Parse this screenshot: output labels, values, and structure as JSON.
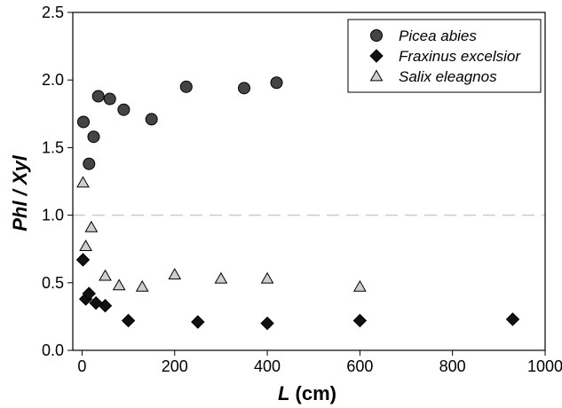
{
  "chart_data": {
    "type": "scatter",
    "xlabel_var": "L",
    "xlabel_unit": " (cm)",
    "ylabel": "Phl / Xyl",
    "xlim": [
      -20,
      1000
    ],
    "ylim": [
      0,
      2.5
    ],
    "x_ticks": [
      "0",
      "200",
      "400",
      "600",
      "800",
      "1000"
    ],
    "y_ticks": [
      "0.0",
      "0.5",
      "1.0",
      "1.5",
      "2.0",
      "2.5"
    ],
    "reference_line": {
      "y": 1.0,
      "style": "dashed",
      "color": "#cccccc"
    },
    "legend_position": "top-right",
    "series": [
      {
        "name": "Picea abies",
        "marker": "circle",
        "color": "#444444",
        "points": [
          [
            3,
            1.69
          ],
          [
            15,
            1.38
          ],
          [
            25,
            1.58
          ],
          [
            35,
            1.88
          ],
          [
            60,
            1.86
          ],
          [
            90,
            1.78
          ],
          [
            150,
            1.71
          ],
          [
            225,
            1.95
          ],
          [
            350,
            1.94
          ],
          [
            420,
            1.98
          ]
        ]
      },
      {
        "name": "Fraxinus excelsior",
        "marker": "diamond",
        "color": "#111111",
        "points": [
          [
            2,
            0.67
          ],
          [
            8,
            0.38
          ],
          [
            15,
            0.42
          ],
          [
            30,
            0.35
          ],
          [
            50,
            0.33
          ],
          [
            100,
            0.22
          ],
          [
            250,
            0.21
          ],
          [
            400,
            0.2
          ],
          [
            600,
            0.22
          ],
          [
            930,
            0.23
          ]
        ]
      },
      {
        "name": "Salix eleagnos",
        "marker": "triangle",
        "color": "#cfcfcf",
        "points": [
          [
            2,
            1.24
          ],
          [
            8,
            0.77
          ],
          [
            20,
            0.91
          ],
          [
            50,
            0.55
          ],
          [
            80,
            0.48
          ],
          [
            130,
            0.47
          ],
          [
            200,
            0.56
          ],
          [
            300,
            0.53
          ],
          [
            400,
            0.53
          ],
          [
            600,
            0.47
          ]
        ]
      }
    ]
  }
}
